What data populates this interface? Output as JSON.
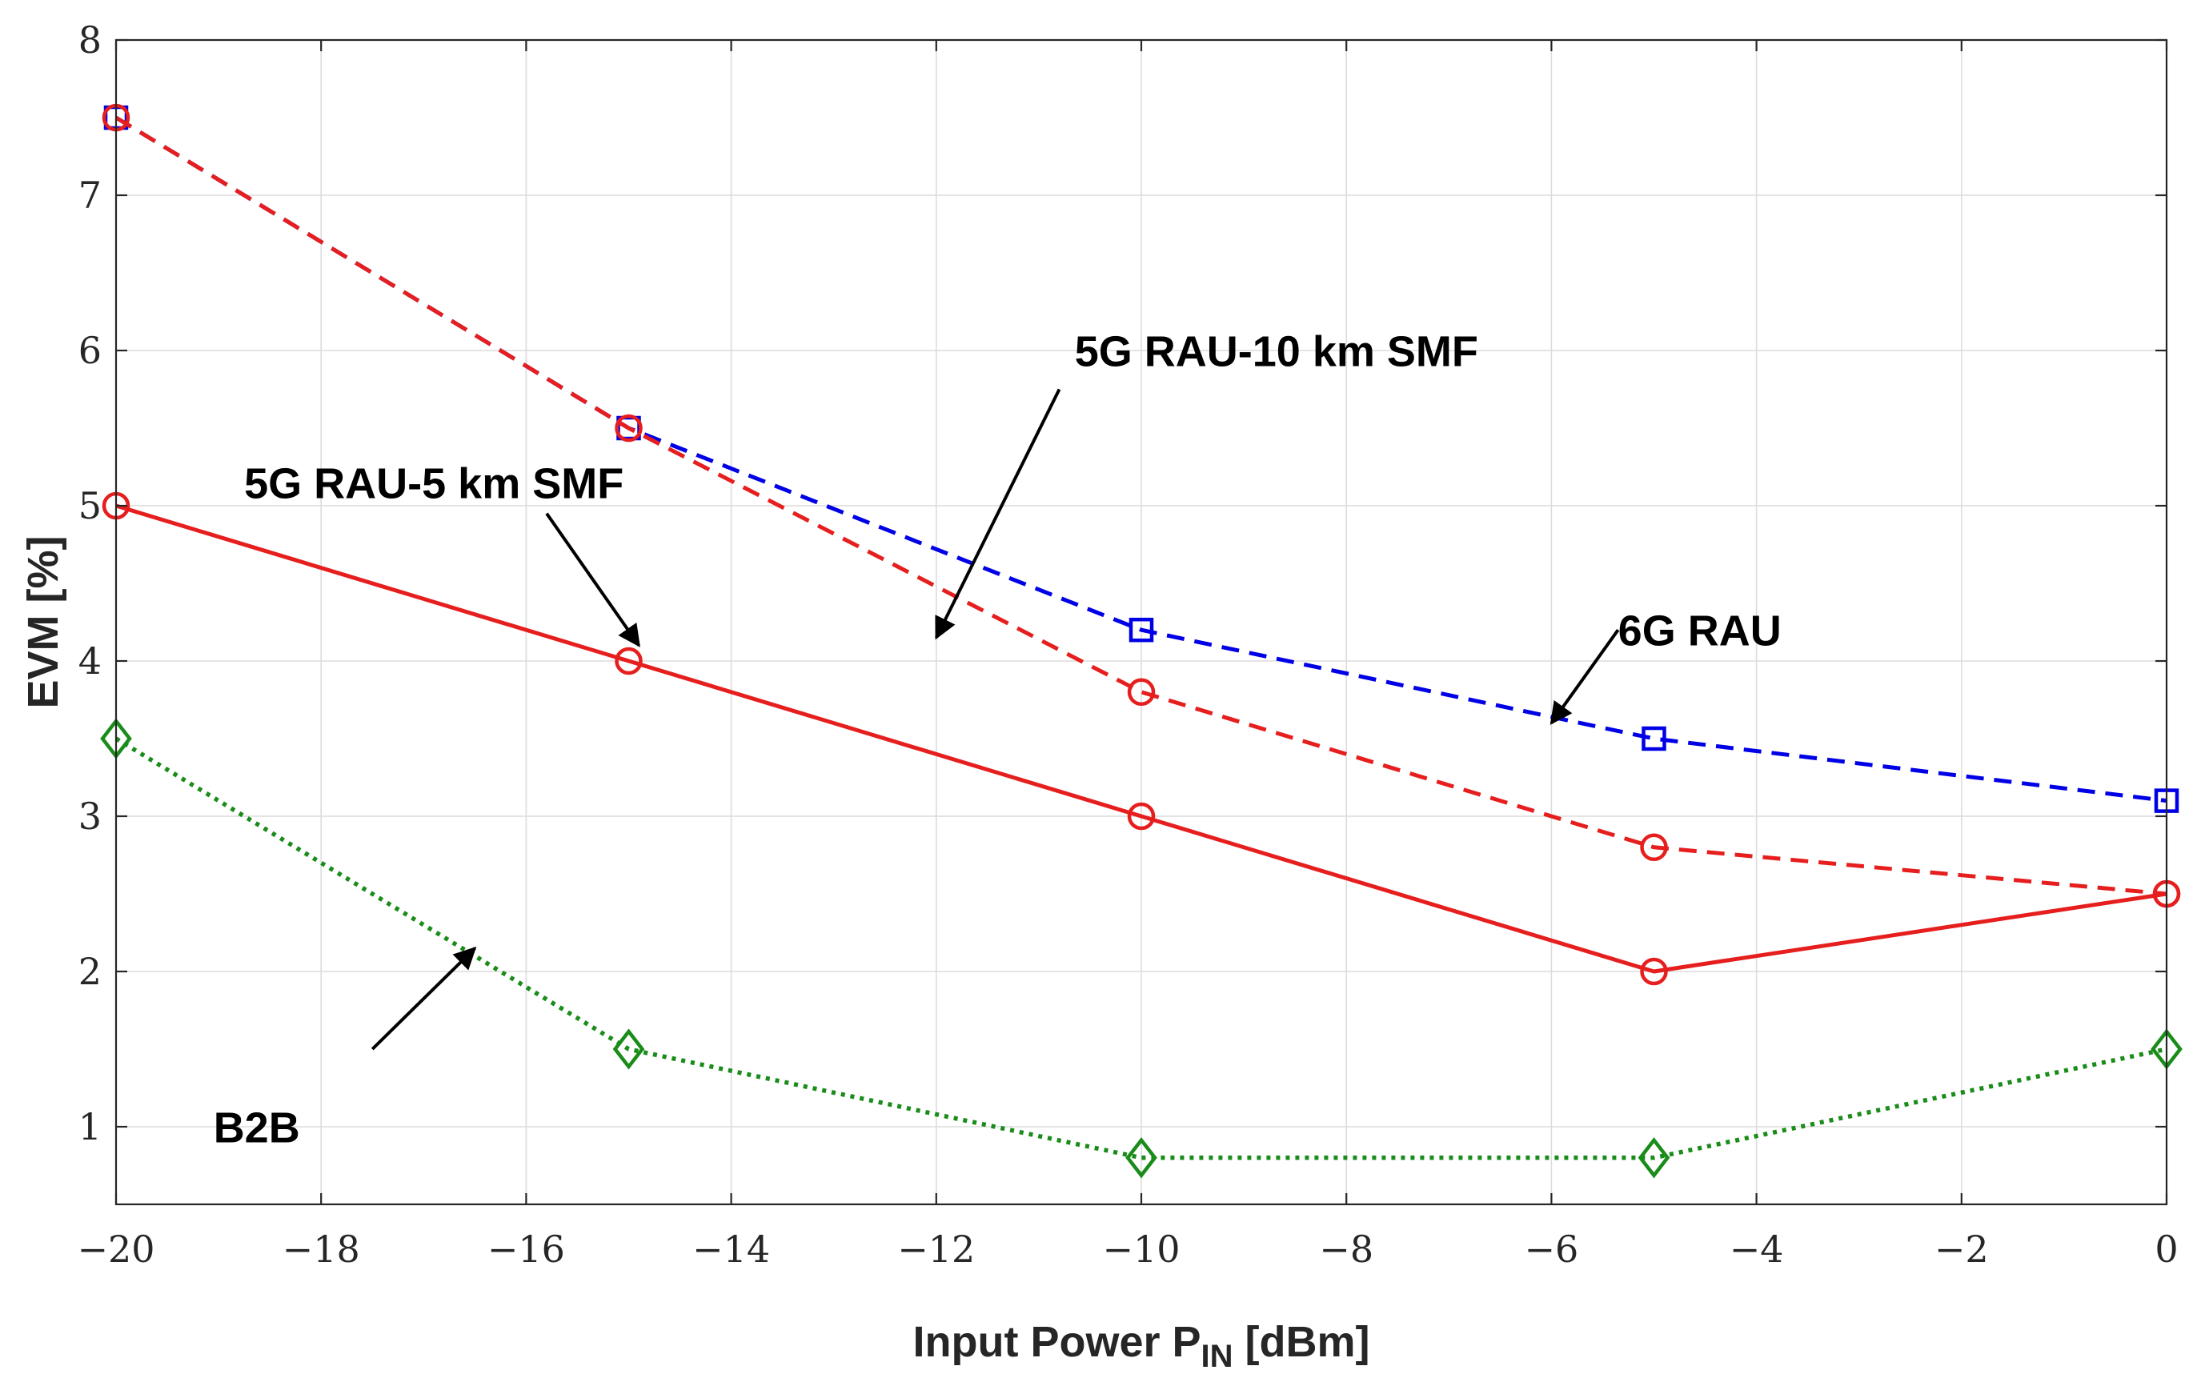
{
  "chart_data": {
    "type": "line",
    "title": "",
    "xlabel": "Input Power P",
    "xlabel_sub": "IN",
    "xlabel_suffix": " [dBm]",
    "ylabel": "EVM [%]",
    "xlim": [
      -20,
      0
    ],
    "ylim": [
      0.5,
      8
    ],
    "xticks": [
      -20,
      -18,
      -16,
      -14,
      -12,
      -10,
      -8,
      -6,
      -4,
      -2,
      0
    ],
    "xtick_labels": [
      "−20",
      "−18",
      "−16",
      "−14",
      "−12",
      "−10",
      "−8",
      "−6",
      "−4",
      "−2",
      "0"
    ],
    "yticks": [
      1,
      2,
      3,
      4,
      5,
      6,
      7,
      8
    ],
    "ytick_labels": [
      "1",
      "2",
      "3",
      "4",
      "5",
      "6",
      "7",
      "8"
    ],
    "grid": true,
    "x": [
      -20,
      -15,
      -10,
      -5,
      0
    ],
    "series": [
      {
        "name": "6G RAU",
        "values": [
          7.5,
          5.5,
          4.2,
          3.5,
          3.1
        ],
        "color": "#0000e6",
        "style": "dashed",
        "marker": "square"
      },
      {
        "name": "5G RAU-10 km SMF",
        "values": [
          7.5,
          5.5,
          3.8,
          2.8,
          2.5
        ],
        "color": "#e61e1e",
        "style": "dashed",
        "marker": "circle"
      },
      {
        "name": "5G RAU-5 km SMF",
        "values": [
          5.0,
          4.0,
          3.0,
          2.0,
          2.5
        ],
        "color": "#e61e1e",
        "style": "solid",
        "marker": "circle"
      },
      {
        "name": "B2B",
        "values": [
          3.5,
          1.5,
          0.8,
          0.8,
          1.5
        ],
        "color": "#1a8c1a",
        "style": "dotted",
        "marker": "diamond"
      }
    ],
    "annotations": [
      {
        "text": "5G RAU-10 km SMF",
        "label_at": [
          -10.65,
          5.9
        ],
        "arrow_from": [
          -10.8,
          5.75
        ],
        "arrow_to": [
          -12.0,
          4.15
        ]
      },
      {
        "text": "5G RAU-5 km SMF",
        "label_at": [
          -18.75,
          5.05
        ],
        "arrow_from": [
          -15.8,
          4.95
        ],
        "arrow_to": [
          -14.9,
          4.1
        ]
      },
      {
        "text": "6G RAU",
        "label_at": [
          -5.35,
          4.1
        ],
        "arrow_from": [
          -5.35,
          4.2
        ],
        "arrow_to": [
          -6.0,
          3.6
        ]
      },
      {
        "text": "B2B",
        "label_at": [
          -19.05,
          0.9
        ],
        "arrow_from": [
          -17.5,
          1.5
        ],
        "arrow_to": [
          -16.5,
          2.15
        ]
      }
    ]
  }
}
